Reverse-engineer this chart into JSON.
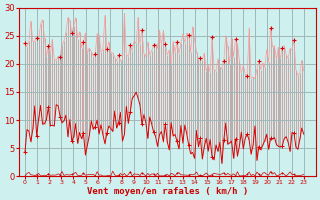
{
  "xlabel": "Vent moyen/en rafales ( km/h )",
  "xlabel_color": "#cc0000",
  "bg_color": "#cef0ee",
  "grid_color": "#a0b8b8",
  "tick_color": "#cc0000",
  "ylim": [
    0,
    30
  ],
  "xlim": [
    -0.5,
    24
  ],
  "yticks": [
    0,
    5,
    10,
    15,
    20,
    25,
    30
  ],
  "xtick_labels": [
    "0",
    "1",
    "2",
    "3",
    "4",
    "5",
    "6",
    "7",
    "8",
    "9",
    "10",
    "11",
    "12",
    "13",
    "14",
    "15",
    "16",
    "17",
    "18",
    "19",
    "20",
    "21",
    "22",
    "23"
  ],
  "mean_color": "#dd0000",
  "gust_color": "#ff9999",
  "spike_color": "#cc8888",
  "bottom_color": "#cc0000",
  "n_per_hour": 6,
  "mean_base": [
    6,
    11,
    10,
    9,
    8,
    8,
    9,
    8,
    8,
    13,
    9,
    7,
    8,
    7,
    5,
    5,
    5,
    6,
    6,
    6,
    5,
    7,
    5,
    7
  ],
  "gust_base": [
    22,
    24,
    20,
    21,
    26,
    21,
    21,
    21,
    20,
    22,
    21,
    22,
    20,
    21,
    22,
    18,
    18,
    19,
    18,
    17,
    19,
    19,
    19,
    15
  ],
  "seed": 123
}
